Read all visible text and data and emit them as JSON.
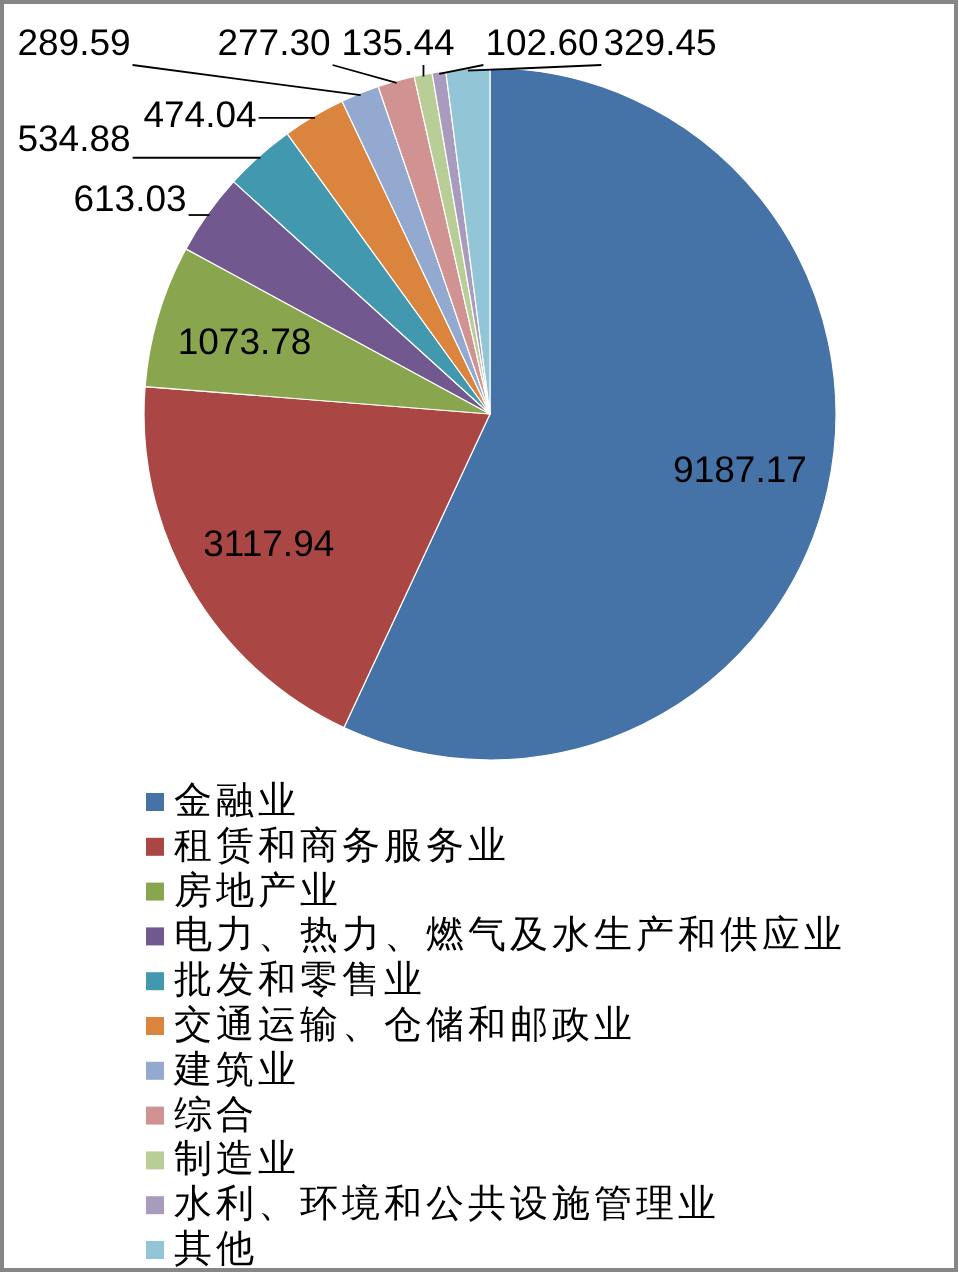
{
  "chart_data": {
    "type": "pie",
    "categories": [
      "金融业",
      "租赁和商务服务业",
      "房地产业",
      "电力、热力、燃气及水生产和供应业",
      "批发和零售业",
      "交通运输、仓储和邮政业",
      "建筑业",
      "综合",
      "制造业",
      "水利、环境和公共设施管理业",
      "其他"
    ],
    "values": [
      9187.17,
      3117.94,
      1073.78,
      613.03,
      534.88,
      474.04,
      289.59,
      277.3,
      135.44,
      102.6,
      329.45
    ],
    "value_labels": [
      "9187.17",
      "3117.94",
      "1073.78",
      "613.03",
      "534.88",
      "474.04",
      "289.59",
      "277.30",
      "135.44",
      "102.60",
      "329.45"
    ],
    "colors": [
      "#4572a7",
      "#aa4643",
      "#89a54e",
      "#71588f",
      "#4198af",
      "#db843d",
      "#93a9cf",
      "#d19392",
      "#b9cd96",
      "#a99bbd",
      "#92c5d6"
    ],
    "data_labels": true,
    "legend": "bottom"
  }
}
